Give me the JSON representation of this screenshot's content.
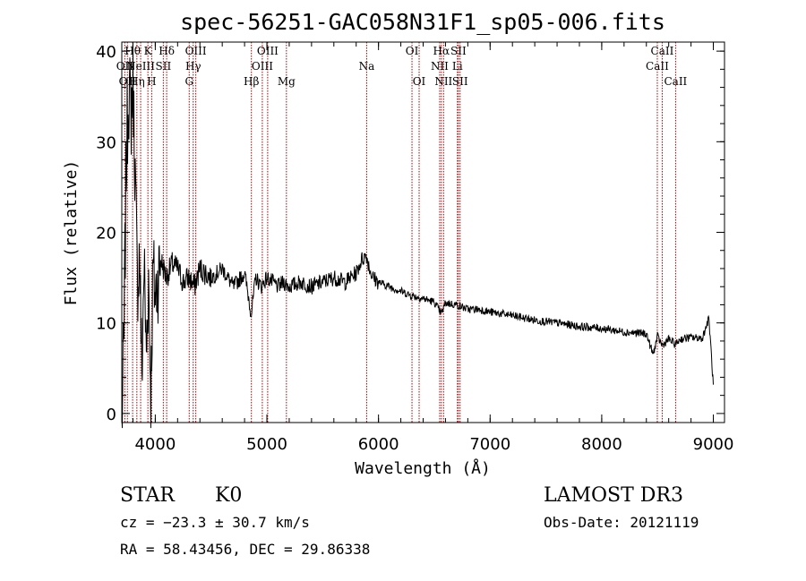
{
  "chart_data": {
    "type": "line",
    "title": "spec-56251-GAC058N31F1_sp05-006.fits",
    "xlabel": "Wavelength (Å)",
    "ylabel": "Flux (relative)",
    "xlim": [
      3700,
      9100
    ],
    "ylim": [
      -1,
      41
    ],
    "x_ticks": [
      4000,
      5000,
      6000,
      7000,
      8000,
      9000
    ],
    "y_ticks": [
      0,
      10,
      20,
      30,
      40
    ],
    "series": [
      {
        "name": "flux",
        "x": [
          3700,
          3720,
          3740,
          3760,
          3780,
          3800,
          3820,
          3840,
          3860,
          3880,
          3900,
          3920,
          3940,
          3960,
          3980,
          4000,
          4050,
          4100,
          4150,
          4200,
          4250,
          4300,
          4350,
          4400,
          4450,
          4500,
          4600,
          4700,
          4800,
          4860,
          4900,
          4950,
          5000,
          5050,
          5100,
          5150,
          5200,
          5300,
          5400,
          5500,
          5600,
          5700,
          5800,
          5850,
          5890,
          5920,
          5950,
          6000,
          6100,
          6200,
          6300,
          6400,
          6500,
          6563,
          6600,
          6700,
          6800,
          6900,
          7000,
          7200,
          7400,
          7600,
          7800,
          8000,
          8200,
          8400,
          8460,
          8500,
          8542,
          8600,
          8662,
          8700,
          8800,
          8900,
          8960,
          8980,
          9000
        ],
        "y": [
          -1.5,
          8,
          28,
          36,
          33,
          37,
          26,
          14,
          18,
          4,
          17,
          6,
          15,
          2,
          16,
          13,
          17,
          15,
          16.5,
          16,
          14.5,
          15,
          14,
          16,
          15.5,
          15,
          16,
          14,
          15.5,
          11,
          15,
          14,
          15,
          14.5,
          14,
          14.5,
          14,
          14.5,
          14,
          14.5,
          15,
          14.5,
          15.5,
          17,
          17.5,
          16,
          15,
          14.5,
          14,
          13.5,
          13,
          12.7,
          12.3,
          11,
          12.2,
          12,
          11.5,
          11.5,
          11.2,
          10.8,
          10.3,
          10,
          9.6,
          9.4,
          9,
          8.8,
          6.5,
          8.5,
          7.5,
          8.2,
          7.6,
          8.2,
          8.4,
          8.3,
          10.5,
          7,
          3
        ]
      }
    ],
    "lines": [
      {
        "x": 3727,
        "label": "OII",
        "row": 2
      },
      {
        "x": 3750,
        "label": "OII",
        "row": 3
      },
      {
        "x": 3797,
        "label": "Hθ",
        "row": 1
      },
      {
        "x": 3835,
        "label": "Hη",
        "row": 3
      },
      {
        "x": 3869,
        "label": "NeIII",
        "row": 2
      },
      {
        "x": 3934,
        "label": "K",
        "row": 1
      },
      {
        "x": 3968,
        "label": "H",
        "row": 3
      },
      {
        "x": 4072,
        "label": "SII",
        "row": 2
      },
      {
        "x": 4102,
        "label": "Hδ",
        "row": 1
      },
      {
        "x": 4304,
        "label": "G",
        "row": 3
      },
      {
        "x": 4340,
        "label": "Hγ",
        "row": 2
      },
      {
        "x": 4363,
        "label": "OIII",
        "row": 1
      },
      {
        "x": 4861,
        "label": "Hβ",
        "row": 3
      },
      {
        "x": 4959,
        "label": "OIII",
        "row": 2
      },
      {
        "x": 5007,
        "label": "OIII",
        "row": 1
      },
      {
        "x": 5175,
        "label": "Mg",
        "row": 3
      },
      {
        "x": 5894,
        "label": "Na",
        "row": 2
      },
      {
        "x": 6300,
        "label": "OI",
        "row": 1
      },
      {
        "x": 6364,
        "label": "OI",
        "row": 3
      },
      {
        "x": 6548,
        "label": "NII",
        "row": 2
      },
      {
        "x": 6563,
        "label": "Hα",
        "row": 1
      },
      {
        "x": 6583,
        "label": "NII",
        "row": 3
      },
      {
        "x": 6707,
        "label": "Li",
        "row": 2
      },
      {
        "x": 6716,
        "label": "SII",
        "row": 1
      },
      {
        "x": 6731,
        "label": "SII",
        "row": 3
      },
      {
        "x": 8498,
        "label": "CaII",
        "row": 2
      },
      {
        "x": 8542,
        "label": "CaII",
        "row": 1
      },
      {
        "x": 8662,
        "label": "CaII",
        "row": 3
      }
    ]
  },
  "info": {
    "object_class": "STAR",
    "subclass": "K0",
    "survey": "LAMOST DR3",
    "cz": "cz = −23.3 ± 30.7 km/s",
    "obs_date": "Obs-Date: 20121119",
    "coords": "RA =  58.43456, DEC =  29.86338"
  },
  "colors": {
    "line_marker": "#b00000",
    "spectrum": "#000000"
  }
}
